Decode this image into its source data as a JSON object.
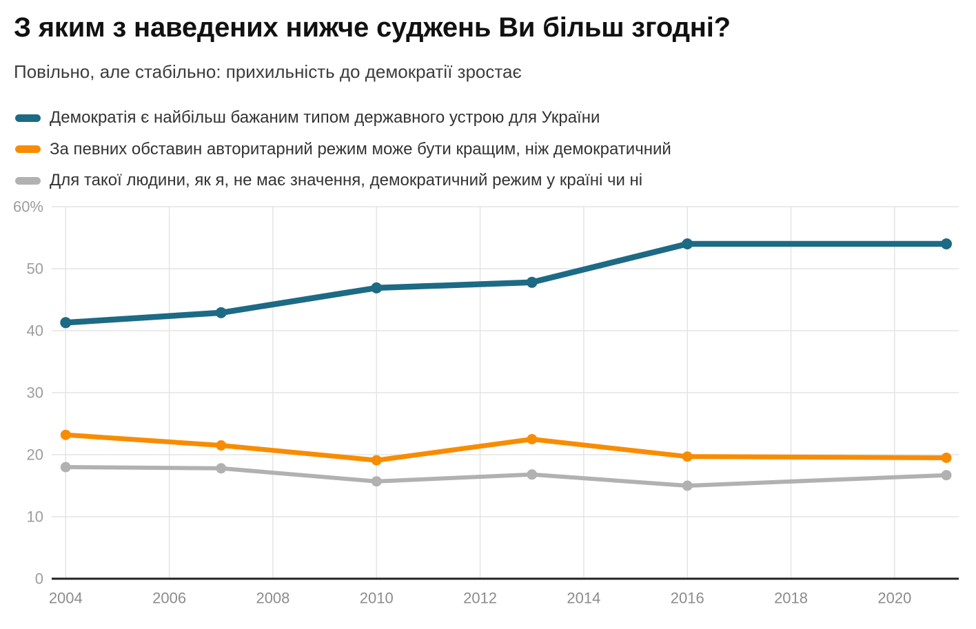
{
  "chart_data": {
    "type": "line",
    "title": "З яким з наведених нижче суджень Ви більш згодні?",
    "subtitle": "Повільно, але стабільно: прихильність до демократії зростає",
    "x": [
      2004,
      2007,
      2010,
      2013,
      2016,
      2021
    ],
    "series": [
      {
        "name": "Демократія є найбільш бажаним типом державного устрою для України",
        "color": "#1d6a85",
        "values": [
          41.3,
          42.9,
          46.9,
          47.8,
          54,
          54
        ]
      },
      {
        "name": "За певних обставин авторитарний режим може бути кращим, ніж демократичний",
        "color": "#f88c00",
        "values": [
          23.2,
          21.5,
          19.1,
          22.5,
          19.7,
          19.5
        ]
      },
      {
        "name": "Для такої людини, як я, не має значення, демократичний режим у країні чи ні",
        "color": "#b1b1b1",
        "values": [
          18,
          17.8,
          15.7,
          16.8,
          15,
          16.7
        ]
      }
    ],
    "xticks": [
      2004,
      2006,
      2008,
      2010,
      2012,
      2014,
      2016,
      2018,
      2020
    ],
    "yticks": [
      {
        "value": 0,
        "label": "0"
      },
      {
        "value": 10,
        "label": "10"
      },
      {
        "value": 20,
        "label": "20"
      },
      {
        "value": 30,
        "label": "30"
      },
      {
        "value": 40,
        "label": "40"
      },
      {
        "value": 50,
        "label": "50"
      },
      {
        "value": 60,
        "label": "60%"
      }
    ],
    "ylim": [
      0,
      60
    ],
    "xlim": [
      2004,
      2021.25
    ],
    "grid": true,
    "legend_position": "top-left",
    "colors": {
      "grid": "#e4e4e4",
      "axis": "#222222",
      "ytick_label": "#9d9d9d",
      "xtick_label": "#8c8c8c"
    }
  }
}
